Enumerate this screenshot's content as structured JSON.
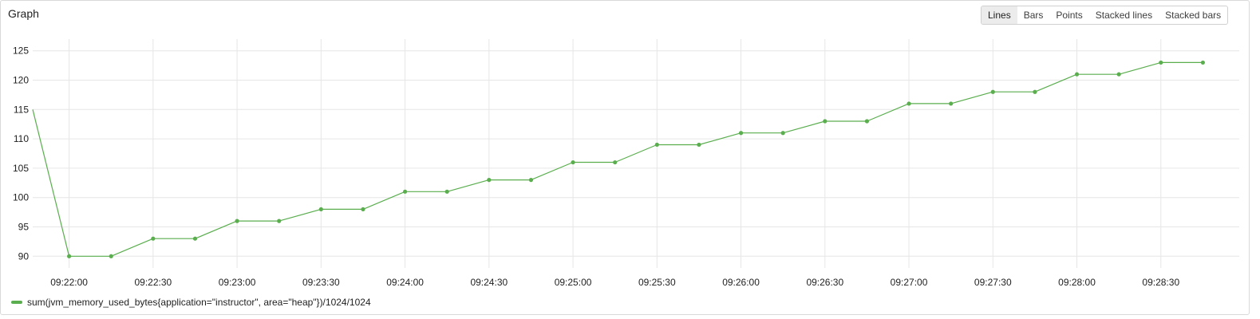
{
  "panel": {
    "title": "Graph",
    "view_modes": [
      {
        "label": "Lines",
        "active": true
      },
      {
        "label": "Bars",
        "active": false
      },
      {
        "label": "Points",
        "active": false
      },
      {
        "label": "Stacked lines",
        "active": false
      },
      {
        "label": "Stacked bars",
        "active": false
      }
    ]
  },
  "colors": {
    "series": "#5aae4e",
    "grid": "#e6e6e6"
  },
  "chart_data": {
    "type": "line",
    "title": "",
    "xlabel": "",
    "ylabel": "",
    "ylim": [
      88,
      127
    ],
    "yticks": [
      90,
      95,
      100,
      105,
      110,
      115,
      120,
      125
    ],
    "xlim": [
      "09:21:47",
      "09:28:58"
    ],
    "xticks": [
      "09:22:00",
      "09:22:30",
      "09:23:00",
      "09:23:30",
      "09:24:00",
      "09:24:30",
      "09:25:00",
      "09:25:30",
      "09:26:00",
      "09:26:30",
      "09:27:00",
      "09:27:30",
      "09:28:00",
      "09:28:30"
    ],
    "grid": true,
    "legend": "bottom-left",
    "series": [
      {
        "name": "sum(jvm_memory_used_bytes{application=\"instructor\", area=\"heap\"})/1024/1024",
        "x": [
          "09:21:47",
          "09:22:00",
          "09:22:15",
          "09:22:30",
          "09:22:45",
          "09:23:00",
          "09:23:15",
          "09:23:30",
          "09:23:45",
          "09:24:00",
          "09:24:15",
          "09:24:30",
          "09:24:45",
          "09:25:00",
          "09:25:15",
          "09:25:30",
          "09:25:45",
          "09:26:00",
          "09:26:15",
          "09:26:30",
          "09:26:45",
          "09:27:00",
          "09:27:15",
          "09:27:30",
          "09:27:45",
          "09:28:00",
          "09:28:15",
          "09:28:30",
          "09:28:45"
        ],
        "values": [
          115,
          90,
          90,
          93,
          93,
          96,
          96,
          98,
          98,
          101,
          101,
          103,
          103,
          106,
          106,
          109,
          109,
          111,
          111,
          113,
          113,
          116,
          116,
          118,
          118,
          121,
          121,
          123,
          123
        ],
        "markers": [
          false,
          true,
          true,
          true,
          true,
          true,
          true,
          true,
          true,
          true,
          true,
          true,
          true,
          true,
          true,
          true,
          true,
          true,
          true,
          true,
          true,
          true,
          true,
          true,
          true,
          true,
          true,
          true,
          true
        ]
      }
    ]
  }
}
